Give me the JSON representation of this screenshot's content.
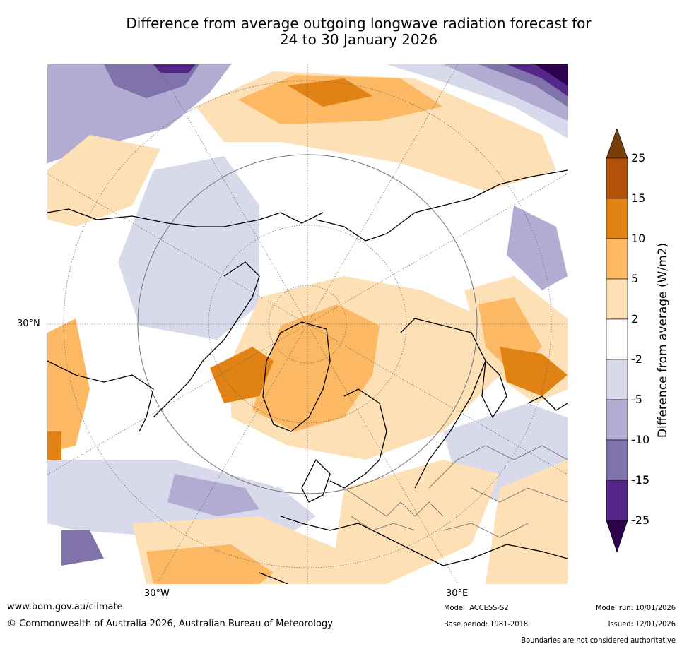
{
  "header": {
    "title_line1": "Difference from average outgoing longwave radiation forecast for",
    "title_line2": "24 to 30 January 2026"
  },
  "map": {
    "lat_label": "30°N",
    "lon_labels": [
      "30°W",
      "30°E"
    ]
  },
  "legend": {
    "title": "Difference from average (W/m2)",
    "tick_labels": [
      "25",
      "15",
      "10",
      "5",
      "2",
      "-2",
      "-5",
      "-10",
      "-15",
      "-25"
    ],
    "colors": [
      "#7a3e0a",
      "#b25208",
      "#e08214",
      "#fdb863",
      "#fee0b6",
      "#ffffff",
      "#d8daeb",
      "#b2abd2",
      "#8073ac",
      "#542788",
      "#2d004b"
    ]
  },
  "footer": {
    "website": "www.bom.gov.au/climate",
    "copyright": "© Commonwealth of Australia 2026, Australian Bureau of Meteorology",
    "model": "Model: ACCESS-S2",
    "base_period": "Base period: 1981-2018",
    "model_run": "Model run: 10/01/2026",
    "issued": "Issued: 12/01/2026",
    "disclaimer": "Boundaries are not considered authoritative"
  }
}
